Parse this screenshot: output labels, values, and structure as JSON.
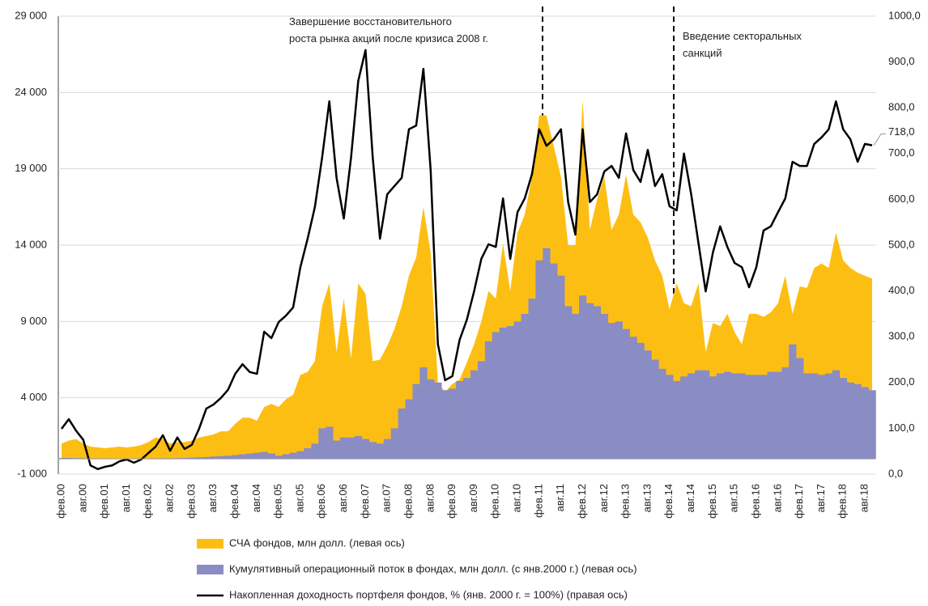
{
  "chart_data": {
    "type": "combo",
    "annotations": [
      "Завершение восстановительного\nроста рынка акций после кризиса 2008 г.",
      "Введение секторальных\nсанкций"
    ],
    "end_label": "718,0",
    "grid": true,
    "legend": "bottom",
    "ylim": [
      -1000,
      29000
    ],
    "yticks": [
      {
        "value": -1000,
        "label": "-1 000"
      },
      {
        "value": 4000,
        "label": "4 000"
      },
      {
        "value": 9000,
        "label": "9 000"
      },
      {
        "value": 14000,
        "label": "14 000"
      },
      {
        "value": 19000,
        "label": "19 000"
      },
      {
        "value": 24000,
        "label": "24 000"
      },
      {
        "value": 29000,
        "label": "29 000"
      }
    ],
    "y2lim": [
      0,
      1000
    ],
    "y2ticks": [
      {
        "value": 0,
        "label": "0,0"
      },
      {
        "value": 100,
        "label": "100,0"
      },
      {
        "value": 200,
        "label": "200,0"
      },
      {
        "value": 300,
        "label": "300,0"
      },
      {
        "value": 400,
        "label": "400,0"
      },
      {
        "value": 500,
        "label": "500,0"
      },
      {
        "value": 600,
        "label": "600,0"
      },
      {
        "value": 700,
        "label": "700,0"
      },
      {
        "value": 800,
        "label": "800,0"
      },
      {
        "value": 900,
        "label": "900,0"
      },
      {
        "value": 1000,
        "label": "1000,0"
      }
    ],
    "categories": [
      "фев.00",
      null,
      null,
      "авг.00",
      null,
      null,
      "фев.01",
      null,
      null,
      "авг.01",
      null,
      null,
      "фев.02",
      null,
      null,
      "авг.02",
      null,
      null,
      "фев.03",
      null,
      null,
      "авг.03",
      null,
      null,
      "фев.04",
      null,
      null,
      "авг.04",
      null,
      null,
      "фев.05",
      null,
      null,
      "авг.05",
      null,
      null,
      "фев.06",
      null,
      null,
      "авг.06",
      null,
      null,
      "фев.07",
      null,
      null,
      "авг.07",
      null,
      null,
      "фев.08",
      null,
      null,
      "авг.08",
      null,
      null,
      "фев.09",
      null,
      null,
      "авг.09",
      null,
      null,
      "фев.10",
      null,
      null,
      "авг.10",
      null,
      null,
      "фев.11",
      null,
      null,
      "авг.11",
      null,
      null,
      "фев.12",
      null,
      null,
      "авг.12",
      null,
      null,
      "фев.13",
      null,
      null,
      "авг.13",
      null,
      null,
      "фев.14",
      null,
      null,
      "авг.14",
      null,
      null,
      "фев.15",
      null,
      null,
      "авг.15",
      null,
      null,
      "фев.16",
      null,
      null,
      "авг.16",
      null,
      null,
      "фев.17",
      null,
      null,
      "авг.17",
      null,
      null,
      "фев.18",
      null,
      null,
      "авг.18",
      null
    ],
    "series": [
      {
        "name": "СЧА фондов, млн долл. (левая ось)",
        "type": "area",
        "color": "#fdbe14",
        "values": [
          1000,
          1200,
          1300,
          1000,
          800,
          750,
          700,
          750,
          800,
          750,
          800,
          900,
          1100,
          1400,
          1300,
          1000,
          1100,
          1100,
          1200,
          1400,
          1500,
          1600,
          1800,
          1800,
          2300,
          2700,
          2700,
          2500,
          3400,
          3600,
          3400,
          3900,
          4200,
          5500,
          5700,
          6400,
          10000,
          11500,
          7000,
          10500,
          6600,
          11500,
          10800,
          6400,
          6500,
          7400,
          8500,
          10000,
          12000,
          13200,
          16500,
          13500,
          5000,
          4400,
          4900,
          5200,
          6300,
          7500,
          9000,
          11000,
          10500,
          14100,
          11000,
          14800,
          16000,
          18500,
          22500,
          22500,
          20500,
          18500,
          14000,
          14000,
          23500,
          15000,
          17000,
          18500,
          15000,
          16000,
          18600,
          16000,
          15500,
          14500,
          13000,
          12000,
          9800,
          11500,
          10200,
          10000,
          11500,
          7000,
          8900,
          8700,
          9500,
          8300,
          7500,
          9500,
          9500,
          9300,
          9600,
          10200,
          12000,
          9500,
          11300,
          11200,
          12500,
          12800,
          12500,
          14800,
          13000,
          12500,
          12200,
          12000,
          11800
        ]
      },
      {
        "name": "Кумулятивный операционный поток в фондах, млн долл. (с янв.2000 г.) (левая ось)",
        "type": "bar",
        "color": "#8a8cc4",
        "values": [
          60,
          60,
          50,
          40,
          30,
          20,
          10,
          10,
          10,
          10,
          10,
          20,
          20,
          30,
          40,
          40,
          50,
          60,
          80,
          100,
          120,
          150,
          180,
          200,
          250,
          300,
          350,
          400,
          450,
          350,
          200,
          300,
          400,
          500,
          700,
          1000,
          2000,
          2100,
          1200,
          1400,
          1400,
          1500,
          1300,
          1100,
          1000,
          1300,
          2000,
          3300,
          3900,
          4900,
          6000,
          5200,
          5000,
          4500,
          4600,
          5100,
          5300,
          5800,
          6400,
          7700,
          8300,
          8600,
          8700,
          9000,
          9500,
          10500,
          13000,
          13800,
          12800,
          12000,
          10000,
          9500,
          10700,
          10200,
          10000,
          9500,
          8900,
          9000,
          8500,
          8000,
          7600,
          7100,
          6500,
          5900,
          5500,
          5100,
          5400,
          5600,
          5800,
          5800,
          5400,
          5600,
          5700,
          5600,
          5600,
          5500,
          5500,
          5500,
          5700,
          5700,
          6000,
          7500,
          6600,
          5600,
          5600,
          5500,
          5600,
          5800,
          5300,
          5000,
          4900,
          4700,
          4500
        ]
      },
      {
        "name": "Накопленная доходность портфеля фондов, % (янв. 2000 г. = 100%) (правая ось)",
        "type": "line",
        "axis": "y2",
        "color": "#000000",
        "values": [
          99,
          120,
          95,
          75,
          19,
          11,
          16,
          19,
          28,
          32,
          25,
          32,
          46,
          60,
          85,
          51,
          80,
          55,
          64,
          99,
          143,
          152,
          166,
          184,
          219,
          240,
          223,
          219,
          311,
          297,
          332,
          346,
          364,
          452,
          514,
          583,
          691,
          814,
          647,
          558,
          691,
          859,
          926,
          691,
          514,
          611,
          629,
          647,
          753,
          761,
          885,
          664,
          284,
          205,
          214,
          293,
          337,
          399,
          470,
          502,
          496,
          602,
          470,
          572,
          602,
          655,
          753,
          717,
          731,
          753,
          594,
          523,
          753,
          594,
          611,
          661,
          673,
          647,
          744,
          664,
          638,
          708,
          629,
          655,
          585,
          576,
          700,
          611,
          505,
          399,
          484,
          541,
          496,
          461,
          452,
          408,
          452,
          532,
          541,
          572,
          602,
          682,
          673,
          673,
          721,
          735,
          753,
          814,
          753,
          731,
          682,
          721,
          718
        ]
      }
    ]
  }
}
